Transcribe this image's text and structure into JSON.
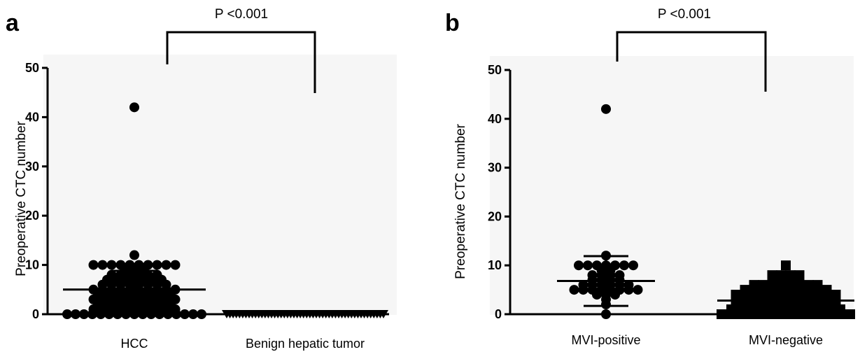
{
  "chart_data": [
    {
      "panel": "a",
      "type": "scatter",
      "ylabel": "Preoperative CTC number",
      "ylim": [
        0,
        50
      ],
      "yticks": [
        "0",
        "10",
        "20",
        "30",
        "40",
        "50"
      ],
      "categories": [
        "HCC",
        "Benign hepatic tumor"
      ],
      "significance": "P <0.001",
      "series": [
        {
          "marker": "circle",
          "values": [
            42,
            12,
            10,
            10,
            10,
            10,
            10,
            10,
            10,
            10,
            10,
            10,
            9,
            9,
            9,
            8,
            8,
            8,
            8,
            8,
            8,
            7,
            7,
            7,
            7,
            7,
            7,
            7,
            6,
            6,
            6,
            6,
            6,
            6,
            6,
            6,
            5,
            5,
            5,
            5,
            5,
            5,
            5,
            5,
            5,
            5,
            4,
            4,
            4,
            4,
            4,
            4,
            4,
            4,
            4,
            3,
            3,
            3,
            3,
            3,
            3,
            3,
            3,
            3,
            3,
            2,
            2,
            2,
            2,
            2,
            2,
            2,
            2,
            2,
            1,
            1,
            1,
            1,
            1,
            1,
            1,
            1,
            1,
            1,
            0,
            0,
            0,
            0,
            0,
            0,
            0,
            0,
            0,
            0,
            0,
            0,
            0,
            0,
            0,
            0,
            0
          ],
          "mean": 5,
          "sd": 3.8
        },
        {
          "marker": "triangle-down",
          "values": [
            0,
            0,
            0,
            0,
            0,
            0,
            0,
            0,
            0,
            0,
            0,
            0,
            0,
            0,
            0,
            0,
            0,
            0,
            0,
            0,
            0,
            0,
            0,
            0,
            0,
            0,
            0,
            0,
            0,
            0,
            0,
            0,
            0,
            0,
            0,
            0,
            0,
            0,
            0,
            0,
            0,
            0,
            0,
            0,
            0,
            0,
            0,
            0,
            0,
            0
          ],
          "mean": 0,
          "sd": 0
        }
      ]
    },
    {
      "panel": "b",
      "type": "scatter",
      "ylabel": "Preoperative CTC number",
      "ylim": [
        0,
        50
      ],
      "yticks": [
        "0",
        "10",
        "20",
        "30",
        "40",
        "50"
      ],
      "categories": [
        "MVI-positive",
        "MVI-negative"
      ],
      "significance": "P <0.001",
      "series": [
        {
          "marker": "circle",
          "values": [
            42,
            12,
            10,
            10,
            10,
            10,
            10,
            10,
            10,
            9,
            9,
            8,
            8,
            8,
            8,
            7,
            7,
            7,
            7,
            6,
            6,
            6,
            6,
            6,
            6,
            5,
            5,
            5,
            5,
            5,
            5,
            5,
            5,
            4,
            4,
            4,
            3,
            2,
            0
          ],
          "mean": 6.8,
          "sd": 5.1
        },
        {
          "marker": "square",
          "values": [
            10,
            8,
            8,
            8,
            8,
            7,
            7,
            7,
            7,
            6,
            6,
            6,
            6,
            6,
            6,
            6,
            6,
            5,
            5,
            5,
            5,
            5,
            5,
            5,
            5,
            5,
            5,
            4,
            4,
            4,
            4,
            4,
            4,
            4,
            4,
            4,
            4,
            4,
            4,
            3,
            3,
            3,
            3,
            3,
            3,
            3,
            3,
            3,
            3,
            3,
            3,
            2,
            2,
            2,
            2,
            2,
            2,
            2,
            2,
            2,
            2,
            2,
            2,
            1,
            1,
            1,
            1,
            1,
            1,
            1,
            1,
            1,
            1,
            1,
            1,
            1,
            0,
            0,
            0,
            0,
            0,
            0,
            0,
            0,
            0,
            0,
            0,
            0,
            0,
            0,
            0,
            0,
            0,
            0
          ],
          "mean": 2.8,
          "sd": 2.4
        }
      ]
    }
  ]
}
